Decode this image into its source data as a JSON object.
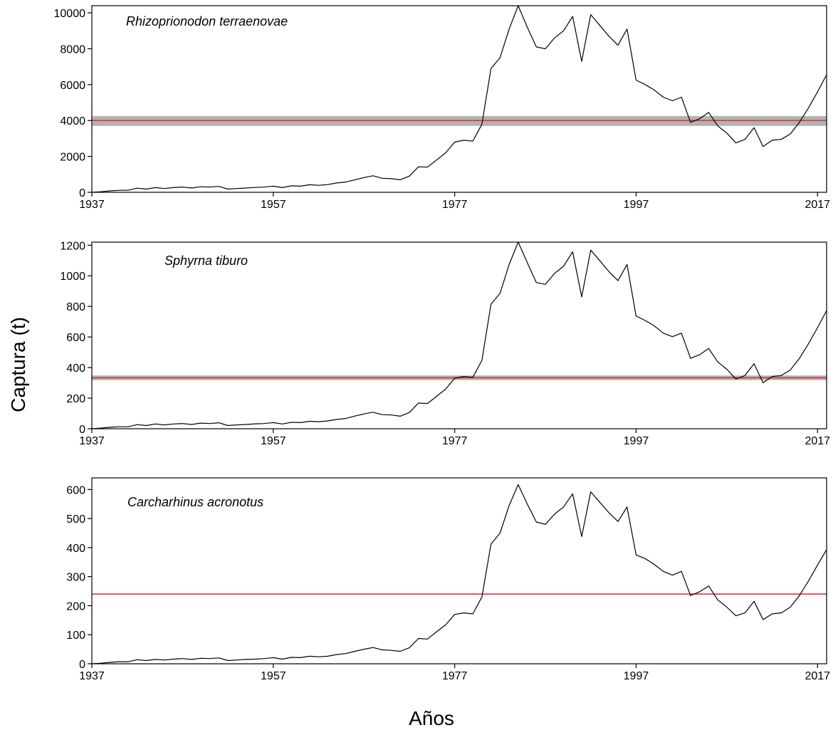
{
  "figure": {
    "ylabel": "Captura (t)",
    "xlabel": "Años"
  },
  "chart_data": [
    {
      "type": "line",
      "title": "Rhizoprionodon terraenovae",
      "xlim": [
        1937,
        2018
      ],
      "ylim": [
        0,
        10400
      ],
      "xticks": [
        1937,
        1957,
        1977,
        1997,
        2017
      ],
      "yticks": [
        0,
        2000,
        4000,
        6000,
        8000,
        10000
      ],
      "reference_line": {
        "value": 4000,
        "band": [
          3700,
          4250
        ],
        "color": "#e8202a",
        "band_color": "#b3b3b3"
      },
      "series": [
        {
          "line_color": "#000000",
          "x": [
            1937,
            1938,
            1939,
            1940,
            1941,
            1942,
            1943,
            1944,
            1945,
            1946,
            1947,
            1948,
            1949,
            1950,
            1951,
            1952,
            1953,
            1954,
            1955,
            1956,
            1957,
            1958,
            1959,
            1960,
            1961,
            1962,
            1963,
            1964,
            1965,
            1966,
            1967,
            1968,
            1969,
            1970,
            1971,
            1972,
            1973,
            1974,
            1975,
            1976,
            1977,
            1978,
            1979,
            1980,
            1981,
            1982,
            1983,
            1984,
            1985,
            1986,
            1987,
            1988,
            1989,
            1990,
            1991,
            1992,
            1993,
            1994,
            1995,
            1996,
            1997,
            1998,
            1999,
            2000,
            2001,
            2002,
            2003,
            2004,
            2005,
            2006,
            2007,
            2008,
            2009,
            2010,
            2011,
            2012,
            2013,
            2014,
            2015,
            2016,
            2017,
            2018
          ],
          "values": [
            0,
            30,
            80,
            110,
            110,
            230,
            180,
            260,
            210,
            260,
            290,
            240,
            310,
            290,
            330,
            180,
            210,
            240,
            270,
            290,
            340,
            260,
            360,
            340,
            420,
            390,
            430,
            520,
            570,
            700,
            820,
            920,
            780,
            760,
            700,
            900,
            1420,
            1400,
            1800,
            2200,
            2800,
            2900,
            2850,
            3800,
            6900,
            7500,
            9100,
            10400,
            9200,
            8100,
            8000,
            8600,
            9000,
            9800,
            7300,
            9900,
            9300,
            8700,
            8200,
            9100,
            6250,
            6000,
            5700,
            5300,
            5100,
            5300,
            3900,
            4100,
            4450,
            3700,
            3300,
            2750,
            2950,
            3600,
            2550,
            2900,
            2950,
            3250,
            3900,
            4700,
            5600,
            6550
          ]
        }
      ]
    },
    {
      "type": "line",
      "title": "Sphyrna tiburo",
      "xlim": [
        1937,
        2018
      ],
      "ylim": [
        0,
        1220
      ],
      "xticks": [
        1937,
        1957,
        1977,
        1997,
        2017
      ],
      "yticks": [
        0,
        200,
        400,
        600,
        800,
        1000,
        1200
      ],
      "reference_line": {
        "value": 333,
        "band": [
          318,
          348
        ],
        "color": "#e8202a",
        "band_color": "#b3b3b3"
      },
      "series": [
        {
          "line_color": "#000000",
          "x": [
            1937,
            1938,
            1939,
            1940,
            1941,
            1942,
            1943,
            1944,
            1945,
            1946,
            1947,
            1948,
            1949,
            1950,
            1951,
            1952,
            1953,
            1954,
            1955,
            1956,
            1957,
            1958,
            1959,
            1960,
            1961,
            1962,
            1963,
            1964,
            1965,
            1966,
            1967,
            1968,
            1969,
            1970,
            1971,
            1972,
            1973,
            1974,
            1975,
            1976,
            1977,
            1978,
            1979,
            1980,
            1981,
            1982,
            1983,
            1984,
            1985,
            1986,
            1987,
            1988,
            1989,
            1990,
            1991,
            1992,
            1993,
            1994,
            1995,
            1996,
            1997,
            1998,
            1999,
            2000,
            2001,
            2002,
            2003,
            2004,
            2005,
            2006,
            2007,
            2008,
            2009,
            2010,
            2011,
            2012,
            2013,
            2014,
            2015,
            2016,
            2017,
            2018
          ],
          "values": [
            0,
            4,
            10,
            13,
            13,
            27,
            21,
            31,
            25,
            31,
            34,
            28,
            37,
            34,
            39,
            21,
            25,
            28,
            32,
            34,
            40,
            31,
            42,
            40,
            49,
            46,
            51,
            61,
            67,
            83,
            97,
            108,
            92,
            90,
            82,
            106,
            168,
            165,
            212,
            259,
            330,
            342,
            336,
            448,
            814,
            885,
            1074,
            1220,
            1086,
            956,
            944,
            1015,
            1062,
            1157,
            862,
            1168,
            1098,
            1027,
            968,
            1074,
            737,
            708,
            673,
            625,
            602,
            625,
            460,
            484,
            525,
            437,
            389,
            325,
            348,
            425,
            301,
            342,
            348,
            384,
            460,
            555,
            661,
            773
          ]
        }
      ]
    },
    {
      "type": "line",
      "title": "Carcharhinus acronotus",
      "xlim": [
        1937,
        2018
      ],
      "ylim": [
        0,
        640
      ],
      "xticks": [
        1937,
        1957,
        1977,
        1997,
        2017
      ],
      "yticks": [
        0,
        100,
        200,
        300,
        400,
        500,
        600
      ],
      "reference_line": {
        "value": 240,
        "color": "#e8202a"
      },
      "series": [
        {
          "line_color": "#000000",
          "x": [
            1937,
            1938,
            1939,
            1940,
            1941,
            1942,
            1943,
            1944,
            1945,
            1946,
            1947,
            1948,
            1949,
            1950,
            1951,
            1952,
            1953,
            1954,
            1955,
            1956,
            1957,
            1958,
            1959,
            1960,
            1961,
            1962,
            1963,
            1964,
            1965,
            1966,
            1967,
            1968,
            1969,
            1970,
            1971,
            1972,
            1973,
            1974,
            1975,
            1976,
            1977,
            1978,
            1979,
            1980,
            1981,
            1982,
            1983,
            1984,
            1985,
            1986,
            1987,
            1988,
            1989,
            1990,
            1991,
            1992,
            1993,
            1994,
            1995,
            1996,
            1997,
            1998,
            1999,
            2000,
            2001,
            2002,
            2003,
            2004,
            2005,
            2006,
            2007,
            2008,
            2009,
            2010,
            2011,
            2012,
            2013,
            2014,
            2015,
            2016,
            2017,
            2018
          ],
          "values": [
            0,
            2,
            5,
            7,
            7,
            14,
            11,
            15,
            13,
            16,
            18,
            15,
            19,
            18,
            20,
            11,
            13,
            15,
            16,
            18,
            21,
            16,
            22,
            21,
            26,
            24,
            26,
            32,
            35,
            43,
            50,
            56,
            48,
            46,
            43,
            55,
            87,
            85,
            110,
            134,
            170,
            175,
            172,
            230,
            412,
            450,
            545,
            617,
            550,
            488,
            480,
            515,
            540,
            585,
            438,
            592,
            556,
            520,
            490,
            540,
            375,
            362,
            342,
            318,
            305,
            318,
            235,
            248,
            268,
            220,
            195,
            165,
            175,
            215,
            152,
            172,
            175,
            195,
            235,
            285,
            340,
            393
          ]
        }
      ]
    }
  ]
}
